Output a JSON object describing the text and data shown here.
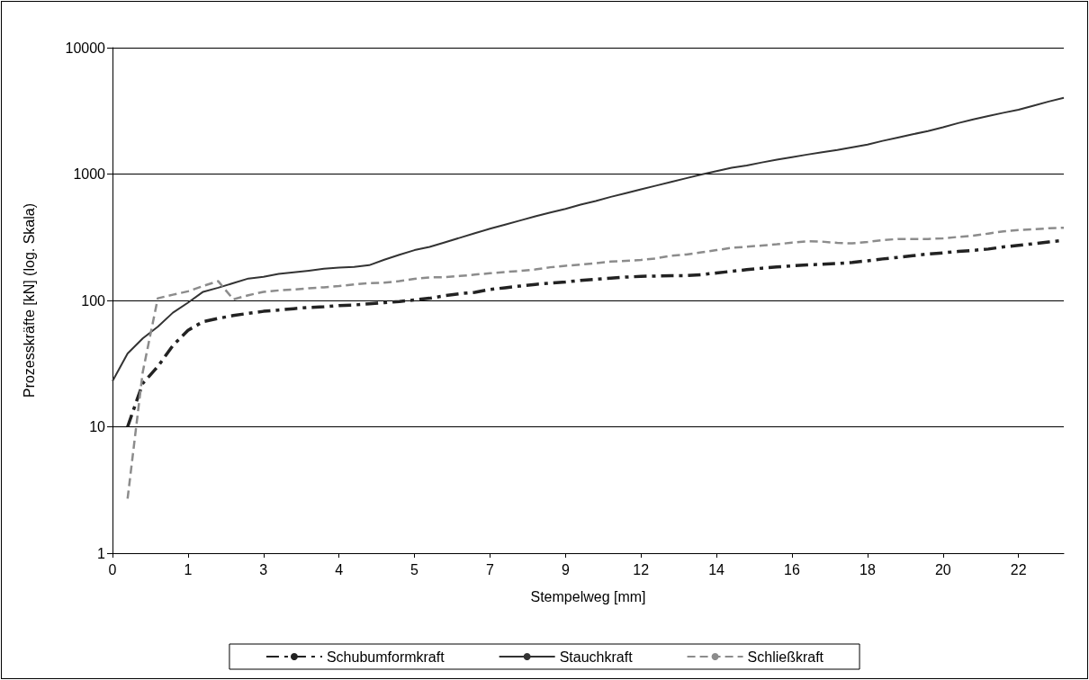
{
  "chart_data": {
    "type": "line",
    "xlabel": "Stempelweg [mm]",
    "ylabel": "Prozesskräfte [kN] (log. Skala)",
    "categories": [
      "0",
      null,
      null,
      null,
      null,
      "1",
      null,
      null,
      null,
      null,
      "3",
      null,
      null,
      null,
      null,
      "4",
      null,
      null,
      null,
      null,
      "5",
      null,
      null,
      null,
      null,
      "7",
      null,
      null,
      null,
      null,
      "9",
      null,
      null,
      null,
      null,
      "12",
      null,
      null,
      null,
      null,
      "14",
      null,
      null,
      null,
      null,
      "16",
      null,
      null,
      null,
      null,
      "18",
      null,
      null,
      null,
      null,
      "20",
      null,
      null,
      null,
      null,
      "22",
      null,
      null,
      null
    ],
    "series": [
      {
        "name": "Schubumformkraft",
        "color": "#222222",
        "line_style": "dashdot",
        "values": [
          null,
          10,
          22,
          30,
          44,
          58,
          68,
          72,
          76,
          79,
          82,
          84,
          86,
          88,
          89,
          91,
          92,
          94,
          96,
          98,
          101,
          104,
          109,
          113,
          116,
          122,
          126,
          130,
          134,
          137,
          140,
          144,
          147,
          150,
          153,
          155,
          156,
          157,
          157,
          160,
          165,
          170,
          175,
          180,
          184,
          188,
          191,
          193,
          196,
          200,
          206,
          213,
          219,
          226,
          233,
          238,
          244,
          249,
          255,
          265,
          273,
          281,
          290,
          299
        ]
      },
      {
        "name": "Stauchkraft",
        "color": "#333333",
        "line_style": "solid",
        "values": [
          23,
          38,
          50,
          62,
          80,
          96,
          117,
          126,
          137,
          149,
          154,
          162,
          167,
          172,
          178,
          182,
          184,
          190,
          210,
          230,
          250,
          265,
          288,
          313,
          340,
          369,
          398,
          429,
          463,
          496,
          530,
          572,
          612,
          660,
          707,
          757,
          810,
          866,
          927,
          993,
          1055,
          1120,
          1170,
          1235,
          1300,
          1360,
          1425,
          1490,
          1550,
          1630,
          1710,
          1830,
          1945,
          2065,
          2190,
          2345,
          2530,
          2710,
          2880,
          3055,
          3225,
          3475,
          3750,
          4010
        ]
      },
      {
        "name": "Schließkraft",
        "color": "#8c8c8c",
        "line_style": "dashed",
        "values": [
          null,
          2.7,
          27,
          104,
          111,
          118,
          130,
          142,
          102,
          110,
          117,
          120,
          122,
          125,
          127,
          130,
          134,
          137,
          138,
          142,
          148,
          152,
          153,
          156,
          160,
          164,
          168,
          171,
          176,
          183,
          188,
          192,
          197,
          203,
          206,
          209,
          215,
          226,
          231,
          240,
          250,
          261,
          266,
          272,
          278,
          287,
          294,
          292,
          285,
          283,
          290,
          300,
          306,
          306,
          306,
          310,
          318,
          325,
          338,
          352,
          361,
          366,
          372,
          376
        ]
      }
    ],
    "log": "y",
    "ylim": [
      1,
      10000
    ],
    "yticks": [
      1,
      10,
      100,
      1000,
      10000
    ],
    "grid": "y",
    "legend": "bottom",
    "marker": "none"
  }
}
